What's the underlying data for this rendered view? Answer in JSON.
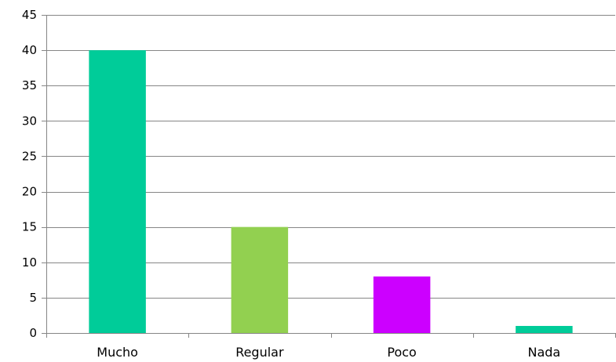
{
  "chart_data": {
    "type": "bar",
    "categories": [
      "Mucho",
      "Regular",
      "Poco",
      "Nada"
    ],
    "values": [
      40,
      15,
      8,
      1
    ],
    "colors": [
      "#00CC99",
      "#92D050",
      "#CC00FF",
      "#00CC99"
    ],
    "title": "",
    "xlabel": "",
    "ylabel": "",
    "ylim": [
      0,
      45
    ],
    "yticks": [
      0,
      5,
      10,
      15,
      20,
      25,
      30,
      35,
      40,
      45
    ],
    "grid": true,
    "legend": "none"
  }
}
